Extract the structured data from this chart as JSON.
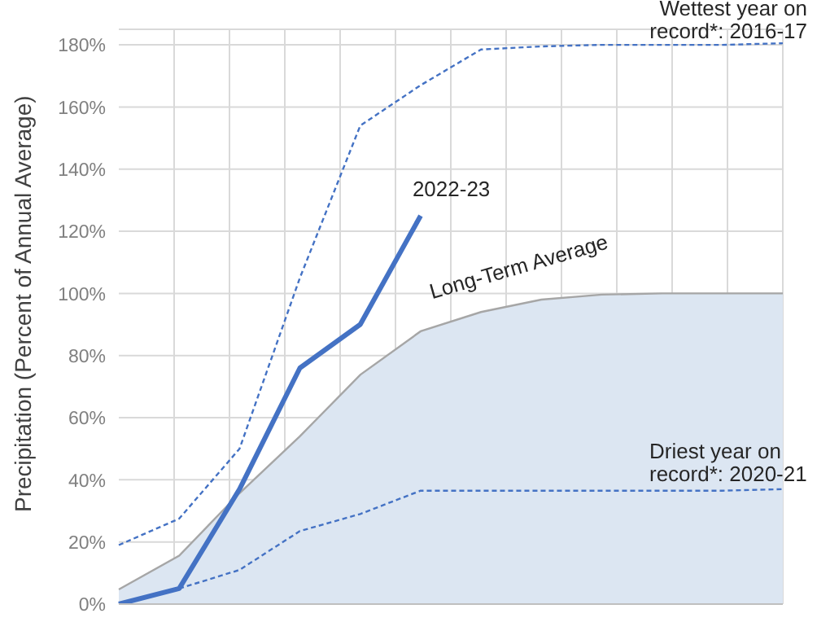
{
  "chart_data": {
    "type": "line",
    "ylabel": "Precipitation (Percent of Annual Average)",
    "categories": [
      null,
      null,
      null,
      null,
      null,
      null,
      null,
      null,
      null,
      null,
      null,
      null
    ],
    "series": [
      {
        "name": "Long-Term Average",
        "type": "area",
        "color": "#dce6f2",
        "values": [
          4.7,
          15.6,
          35.7,
          54,
          73.8,
          87.8,
          94,
          98,
          99.6,
          100,
          100,
          100
        ]
      },
      {
        "name": "Wettest year on record*: 2016-17",
        "color": "#4472c4",
        "line_style": "dashed",
        "values": [
          19,
          27.5,
          50,
          105,
          154,
          167,
          178.5,
          179.5,
          180,
          180,
          180,
          180.5
        ]
      },
      {
        "name": "Driest year on record*: 2020-21",
        "color": "#4472c4",
        "line_style": "dashed",
        "values": [
          null,
          5,
          11,
          23.5,
          29,
          36.5,
          36.5,
          36.5,
          36.5,
          36.5,
          36.5,
          37
        ]
      },
      {
        "name": "2022-23",
        "color": "#4472c4",
        "line_style": "solid",
        "values": [
          0,
          5,
          37,
          76,
          90,
          125,
          null,
          null,
          null,
          null,
          null,
          null
        ]
      }
    ],
    "ylim": [
      0,
      185
    ],
    "yticks": [
      {
        "value": 0,
        "label": "0%"
      },
      {
        "value": 20,
        "label": "20%"
      },
      {
        "value": 40,
        "label": "40%"
      },
      {
        "value": 60,
        "label": "60%"
      },
      {
        "value": 80,
        "label": "80%"
      },
      {
        "value": 100,
        "label": "100%"
      },
      {
        "value": 120,
        "label": "120%"
      },
      {
        "value": 140,
        "label": "140%"
      },
      {
        "value": 160,
        "label": "160%"
      },
      {
        "value": 180,
        "label": "180%"
      }
    ],
    "grid": true,
    "legend": false,
    "marker": "none"
  }
}
